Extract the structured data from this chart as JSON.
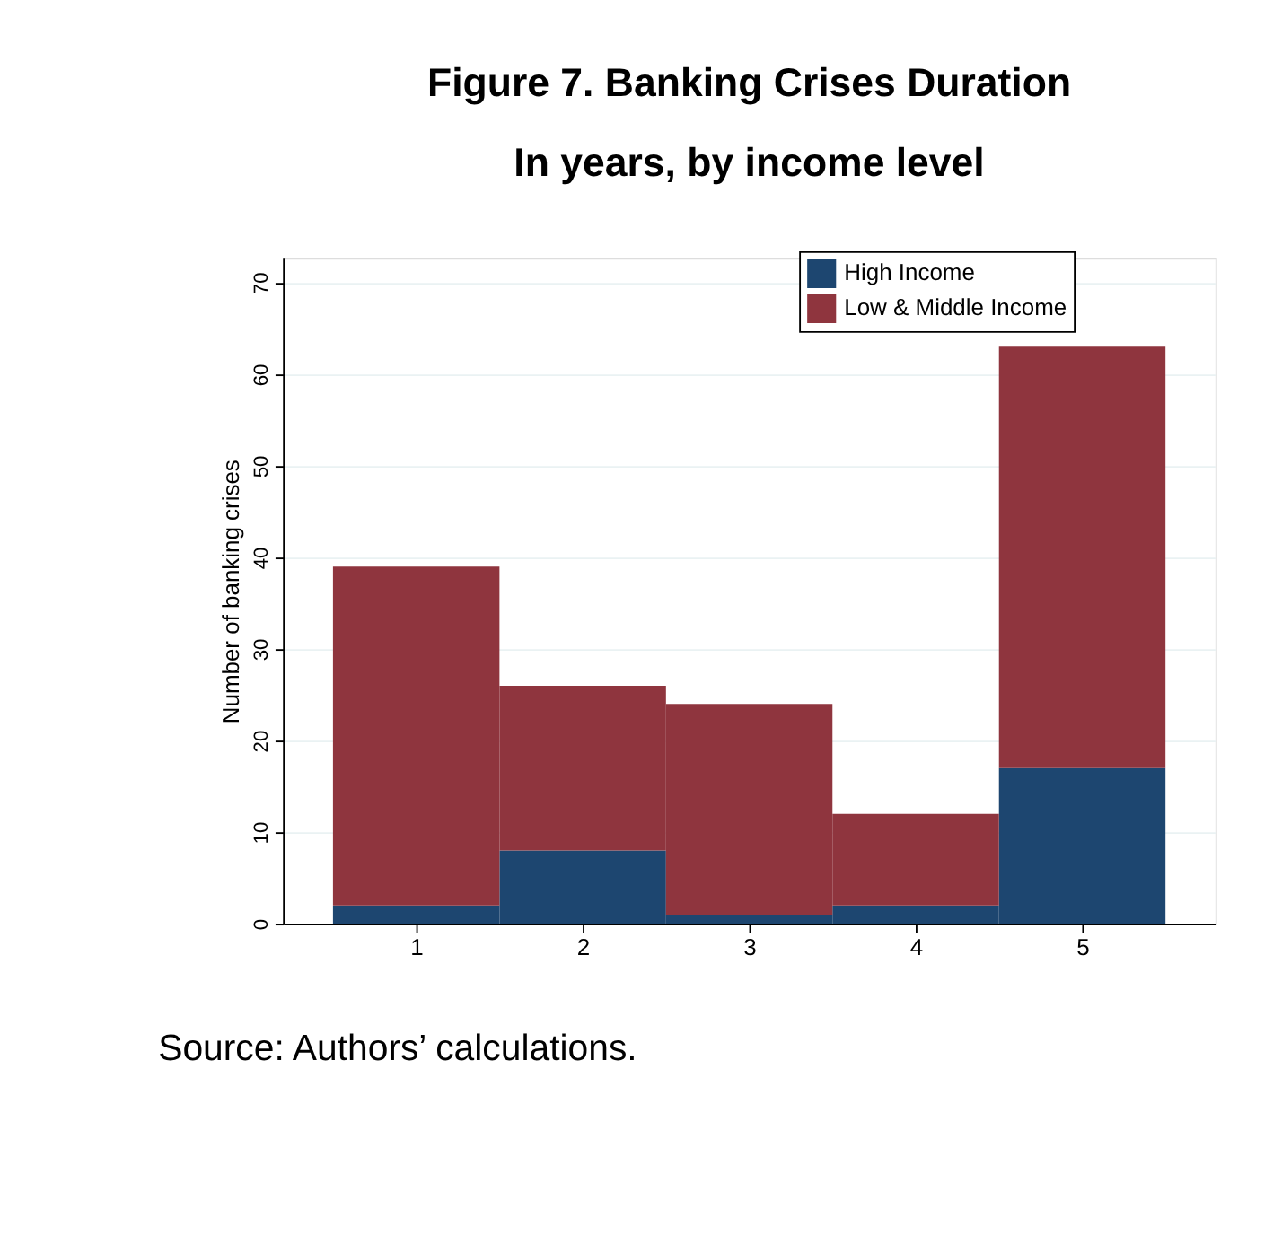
{
  "chart_data": {
    "type": "bar",
    "title": "Figure 7. Banking Crises Duration",
    "subtitle": "In years, by income level",
    "ylabel": "Number of banking crises",
    "categories": [
      "1",
      "2",
      "3",
      "4",
      "5"
    ],
    "stacked": true,
    "series": [
      {
        "name": "High Income",
        "color": "#1d4670",
        "values": [
          2,
          8,
          1,
          2,
          17
        ]
      },
      {
        "name": "Low & Middle Income",
        "color": "#8f353e",
        "values": [
          37,
          18,
          23,
          10,
          46
        ]
      }
    ],
    "ylim": [
      0,
      72.7
    ],
    "yticks": [
      0,
      10,
      20,
      30,
      40,
      50,
      60,
      70
    ],
    "grid": "y",
    "legend": "top right",
    "annotations": [
      "Source: Authors’ calculations."
    ]
  }
}
